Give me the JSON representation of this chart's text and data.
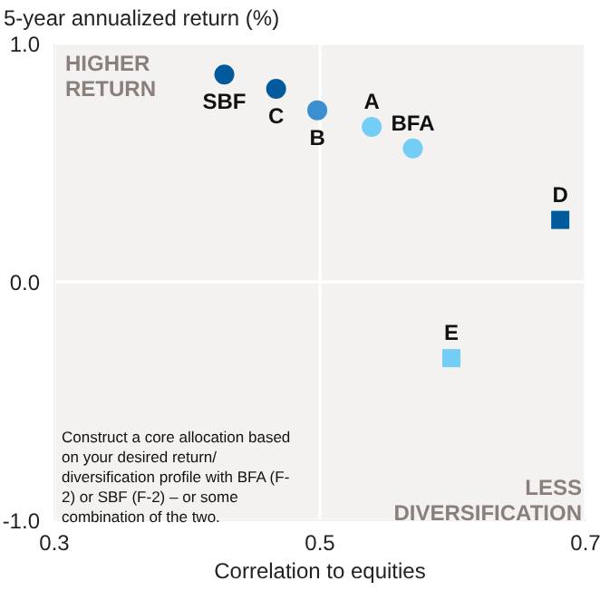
{
  "chart_data": {
    "type": "scatter",
    "ylabel": "5-year annualized return (%)",
    "xlabel": "Correlation to equities",
    "xlim": [
      0.3,
      0.7
    ],
    "xticks": [
      0.3,
      0.5,
      0.7
    ],
    "ylim": [
      -1,
      1
    ],
    "yticks": [
      {
        "value": 1,
        "label": "1.0"
      },
      {
        "value": 0,
        "label": "0.0"
      },
      {
        "value": -1,
        "label": "-1.0"
      }
    ],
    "grid": true,
    "series": [
      {
        "marker": "circle",
        "x": [
          0.428,
          0.467,
          0.498,
          0.539,
          0.57
        ],
        "values": [
          0.87,
          0.81,
          0.72,
          0.65,
          0.56
        ],
        "colors": [
          "#005a9c",
          "#005a9c",
          "#3a8fd0",
          "#73cdf5",
          "#73cdf5"
        ],
        "value_labels": [
          "SBF",
          "C",
          "B",
          "A",
          "BFA"
        ]
      },
      {
        "marker": "square",
        "x": [
          0.681,
          0.599
        ],
        "values": [
          0.26,
          -0.32
        ],
        "colors": [
          "#005a9c",
          "#73cdf5"
        ],
        "value_labels": [
          "D",
          "E"
        ]
      }
    ],
    "annotations": [
      "HIGHER RETURN",
      "LESS DIVERSIFICATION",
      "Construct a core allocation based on your desired return/ diversification profile with BFA (F-2) or SBF (F-2) – or some combination of the two."
    ]
  }
}
